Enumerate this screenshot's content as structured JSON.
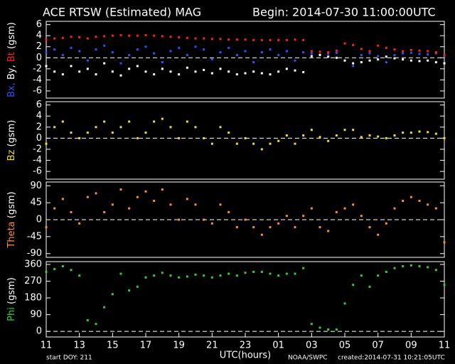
{
  "title": "ACE RTSW (Estimated) MAG",
  "begin": "Begin: 2014-07-30 11:00:00UTC",
  "footer": {
    "start_doy": "start DOY:  211",
    "x_label": "UTC(hours)",
    "source": "NOAA/SWPC",
    "created": "created:2014-07-31 10:21:05UTC"
  },
  "chart_data": [
    {
      "type": "scatter",
      "y_label": "(gsm)",
      "ylim": [
        -7.3,
        6.6
      ],
      "yticks": [
        6,
        4,
        2,
        0,
        -2,
        -4,
        -6
      ],
      "xlim": [
        0,
        24
      ],
      "x": [
        0,
        0.5,
        1,
        1.5,
        2,
        2.5,
        3,
        3.5,
        4,
        4.5,
        5,
        5.5,
        6,
        6.5,
        7,
        7.5,
        8,
        8.5,
        9,
        9.5,
        10,
        10.5,
        11,
        11.5,
        12,
        12.5,
        13,
        13.5,
        14,
        14.5,
        15,
        15.5,
        16,
        16.5,
        17,
        17.5,
        18,
        18.5,
        19,
        19.5,
        20,
        20.5,
        21,
        21.5,
        22,
        22.5,
        23,
        23.5,
        24
      ],
      "series": [
        {
          "name": "Bx,",
          "color": "#3050ff",
          "values": [
            1.0,
            1.5,
            0.5,
            1.8,
            1.2,
            -0.5,
            1.5,
            2.2,
            1.0,
            -1.0,
            0.5,
            1.5,
            2.0,
            0.8,
            -0.8,
            1.2,
            1.8,
            0.5,
            2.0,
            1.5,
            -0.3,
            1.0,
            1.8,
            0.5,
            1.2,
            -0.8,
            1.0,
            1.5,
            0.5,
            1.2,
            -0.5,
            1.0,
            0.8,
            0.6,
            0.7,
            0.9,
            -0.5,
            -1.5,
            0.5,
            0.8,
            0.3,
            -0.8,
            0.5,
            0.8,
            0.9,
            0.7,
            0.6,
            0.8,
            0.3
          ]
        },
        {
          "name": "By,",
          "color": "#ffffff",
          "values": [
            -1.5,
            -2.5,
            -3.0,
            -1.5,
            -2.5,
            -2.0,
            -3.0,
            -1.0,
            -2.5,
            -3.2,
            -2.0,
            -1.5,
            -2.5,
            -3.0,
            -2.0,
            -2.5,
            -3.0,
            -1.8,
            -2.5,
            -2.2,
            -2.8,
            -2.0,
            -2.5,
            -3.0,
            -2.8,
            -2.5,
            -2.8,
            -3.0,
            -2.5,
            -2.0,
            -2.3,
            -2.6,
            0.3,
            0.5,
            0.2,
            0.0,
            -0.5,
            -1.0,
            -0.8,
            -0.5,
            -0.3,
            0.2,
            -0.1,
            -0.3,
            -0.5,
            -0.6,
            -0.5,
            -0.8,
            -1.0
          ]
        },
        {
          "name": "Bt",
          "color": "#ff2020",
          "values": [
            3.3,
            3.5,
            3.6,
            3.8,
            3.7,
            3.5,
            3.8,
            3.9,
            4.0,
            4.1,
            4.0,
            4.0,
            4.1,
            4.0,
            3.9,
            3.8,
            3.7,
            3.6,
            3.5,
            3.5,
            3.4,
            3.4,
            3.3,
            3.3,
            3.3,
            3.2,
            3.2,
            3.2,
            3.2,
            3.2,
            3.3,
            3.2,
            1.2,
            1.1,
            1.0,
            1.3,
            2.6,
            2.3,
            1.6,
            1.2,
            2.2,
            1.8,
            1.5,
            1.2,
            1.4,
            1.3,
            1.2,
            1.0,
            0.5
          ]
        }
      ]
    },
    {
      "type": "scatter",
      "y_label": "(gsm)",
      "ylim": [
        -7.4,
        6.6
      ],
      "yticks": [
        6,
        4,
        2,
        0,
        -2,
        -4,
        -6
      ],
      "xlim": [
        0,
        24
      ],
      "x": [
        0,
        0.5,
        1,
        1.5,
        2,
        2.5,
        3,
        3.5,
        4,
        4.5,
        5,
        5.5,
        6,
        6.5,
        7,
        7.5,
        8,
        8.5,
        9,
        9.5,
        10,
        10.5,
        11,
        11.5,
        12,
        12.5,
        13,
        13.5,
        14,
        14.5,
        15,
        15.5,
        16,
        16.5,
        17,
        17.5,
        18,
        18.5,
        19,
        19.5,
        20,
        20.5,
        21,
        21.5,
        22,
        22.5,
        23,
        23.5,
        24
      ],
      "series": [
        {
          "name": "Bz",
          "color": "#f0e020",
          "values": [
            -1,
            2,
            3,
            1,
            0,
            1,
            2,
            3,
            1,
            2,
            3,
            0,
            1,
            3,
            3.5,
            2,
            0,
            3,
            2,
            0,
            -1,
            2,
            1,
            -1,
            0,
            -1,
            -2,
            -1,
            -0.5,
            0.5,
            -1,
            0.5,
            1.5,
            0.2,
            -0.5,
            0.5,
            1.5,
            1.5,
            0.2,
            0.5,
            0.3,
            0,
            0.5,
            1,
            1,
            1.2,
            1.1,
            0.8,
            0
          ]
        }
      ]
    },
    {
      "type": "scatter",
      "y_label": "(gsm)",
      "ylim": [
        -100,
        100
      ],
      "yticks": [
        90,
        45,
        0,
        -45,
        -90
      ],
      "xlim": [
        0,
        24
      ],
      "x": [
        0,
        0.5,
        1,
        1.5,
        2,
        2.5,
        3,
        3.5,
        4,
        4.5,
        5,
        5.5,
        6,
        6.5,
        7,
        7.5,
        8,
        8.5,
        9,
        9.5,
        10,
        10.5,
        11,
        11.5,
        12,
        12.5,
        13,
        13.5,
        14,
        14.5,
        15,
        15.5,
        16,
        16.5,
        17,
        17.5,
        18,
        18.5,
        19,
        19.5,
        20,
        20.5,
        21,
        21.5,
        22,
        22.5,
        23,
        23.5,
        24
      ],
      "series": [
        {
          "name": "Theta",
          "color": "#ff8c30",
          "values": [
            -20,
            30,
            55,
            20,
            -10,
            60,
            70,
            20,
            40,
            80,
            30,
            60,
            75,
            50,
            80,
            40,
            0,
            55,
            40,
            0,
            -10,
            40,
            20,
            -20,
            0,
            -20,
            -40,
            -20,
            -10,
            10,
            -20,
            10,
            30,
            -20,
            -30,
            20,
            30,
            40,
            10,
            -20,
            -40,
            -10,
            30,
            50,
            60,
            50,
            40,
            30,
            -60
          ]
        }
      ]
    },
    {
      "type": "scatter",
      "y_label": "(gsm)",
      "ylim": [
        -30,
        375
      ],
      "yticks": [
        360,
        270,
        180,
        90,
        0
      ],
      "xlim": [
        0,
        24
      ],
      "x": [
        0,
        0.5,
        1,
        1.5,
        2,
        2.5,
        3,
        3.5,
        4,
        4.5,
        5,
        5.5,
        6,
        6.5,
        7,
        7.5,
        8,
        8.5,
        9,
        9.5,
        10,
        10.5,
        11,
        11.5,
        12,
        12.5,
        13,
        13.5,
        14,
        14.5,
        15,
        15.5,
        16,
        16.5,
        17,
        17.5,
        18,
        18.5,
        19,
        19.5,
        20,
        20.5,
        21,
        21.5,
        22,
        22.5,
        23,
        23.5,
        24
      ],
      "xticks": [
        {
          "value": 0,
          "label": "11"
        },
        {
          "value": 2,
          "label": "13"
        },
        {
          "value": 4,
          "label": "15"
        },
        {
          "value": 6,
          "label": "17"
        },
        {
          "value": 8,
          "label": "19"
        },
        {
          "value": 10,
          "label": "21"
        },
        {
          "value": 12,
          "label": "23"
        },
        {
          "value": 14,
          "label": "01"
        },
        {
          "value": 16,
          "label": "03"
        },
        {
          "value": 18,
          "label": "05"
        },
        {
          "value": 20,
          "label": "07"
        },
        {
          "value": 22,
          "label": "09"
        },
        {
          "value": 24,
          "label": "11"
        }
      ],
      "series": [
        {
          "name": "Phi",
          "color": "#30d030",
          "values": [
            320,
            335,
            350,
            330,
            300,
            60,
            40,
            130,
            200,
            310,
            220,
            240,
            290,
            300,
            315,
            300,
            290,
            295,
            305,
            300,
            290,
            300,
            310,
            300,
            315,
            320,
            320,
            310,
            300,
            310,
            310,
            340,
            40,
            20,
            10,
            10,
            150,
            250,
            300,
            240,
            300,
            320,
            340,
            350,
            355,
            350,
            345,
            330,
            250
          ]
        }
      ]
    }
  ]
}
